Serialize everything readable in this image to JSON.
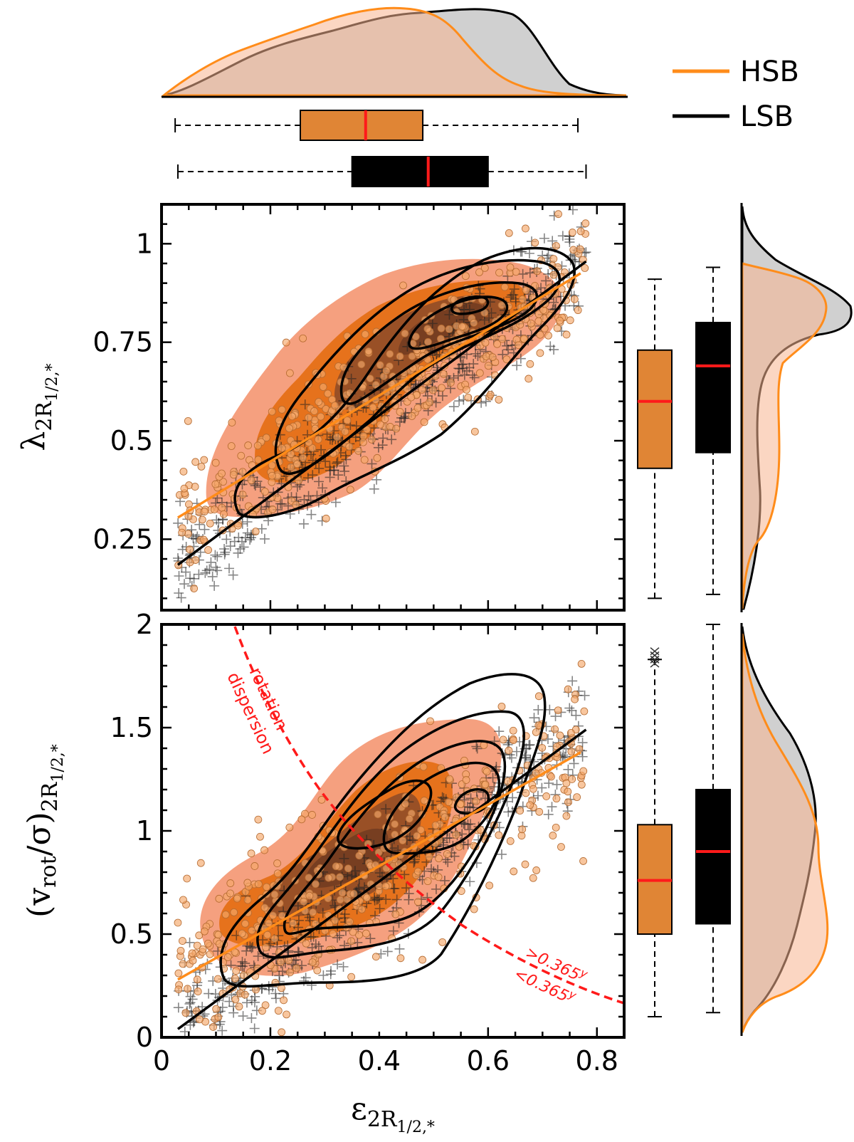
{
  "colors": {
    "hsb": "#ff8c1a",
    "hsb_box": "#e08535",
    "hsb_kde_light": "#f5a07f",
    "hsb_kde_mid": "#e6721c",
    "hsb_kde_dark": "#8b4a28",
    "lsb": "#000000",
    "lsb_fill": "#c8c8c8",
    "median": "#ff1a1a",
    "divider": "#ff1a1a"
  },
  "chart_data": [
    {
      "id": "top-scatter",
      "type": "scatter",
      "xlabel_main": "ε",
      "xlabel_sub": "2R",
      "ylabel_main": "λ",
      "ylabel_sub": "2R",
      "ylabel_subsub": "1/2,*",
      "xlim": [
        0,
        0.85
      ],
      "ylim": [
        0.07,
        1.1
      ],
      "yticks": [
        0.25,
        0.5,
        0.75,
        1.0
      ],
      "ytick_labels": [
        "0.25",
        "0.5",
        "0.75",
        "1"
      ],
      "series": [
        {
          "name": "HSB",
          "fit": [
            [
              0.03,
              0.305
            ],
            [
              0.77,
              0.925
            ]
          ]
        },
        {
          "name": "LSB",
          "fit": [
            [
              0.03,
              0.185
            ],
            [
              0.78,
              0.955
            ]
          ]
        }
      ]
    },
    {
      "id": "bottom-scatter",
      "type": "scatter",
      "xlabel_main": "ε",
      "xlabel_sub": "2R",
      "xlabel_subsub": "1/2,*",
      "ylabel_main": "(v",
      "ylabel_rot": "rot",
      "ylabel_mid": "/σ)",
      "ylabel_sub": "2R",
      "ylabel_subsub": "1/2,*",
      "xlim": [
        0,
        0.85
      ],
      "ylim": [
        0,
        2
      ],
      "xticks": [
        0,
        0.2,
        0.4,
        0.6,
        0.8
      ],
      "xtick_labels": [
        "0",
        "0.2",
        "0.4",
        "0.6",
        "0.8"
      ],
      "yticks": [
        0,
        0.5,
        1,
        1.5,
        2
      ],
      "ytick_labels": [
        "0",
        "0.5",
        "1",
        "1.5",
        "2"
      ],
      "series": [
        {
          "name": "HSB",
          "fit": [
            [
              0.03,
              0.28
            ],
            [
              0.77,
              1.38
            ]
          ]
        },
        {
          "name": "LSB",
          "fit": [
            [
              0.03,
              0.04
            ],
            [
              0.78,
              1.49
            ]
          ]
        }
      ],
      "annotations": {
        "rotation": "rotation",
        "dispersion": "dispersion",
        "above": ">0.365",
        "below": "<0.365",
        "above_sup": "y",
        "below_sup": "y"
      }
    },
    {
      "id": "box-top-x",
      "type": "box",
      "orientation": "horizontal",
      "series": [
        {
          "name": "HSB",
          "whislo": 0.025,
          "q1": 0.255,
          "med": 0.375,
          "q3": 0.48,
          "whishi": 0.765
        },
        {
          "name": "LSB",
          "whislo": 0.03,
          "q1": 0.35,
          "med": 0.49,
          "q3": 0.6,
          "whishi": 0.78
        }
      ]
    },
    {
      "id": "box-lambda",
      "type": "box",
      "orientation": "vertical",
      "series": [
        {
          "name": "HSB",
          "whislo": 0.1,
          "q1": 0.43,
          "med": 0.6,
          "q3": 0.73,
          "whishi": 0.91
        },
        {
          "name": "LSB",
          "whislo": 0.11,
          "q1": 0.47,
          "med": 0.69,
          "q3": 0.8,
          "whishi": 0.94
        }
      ]
    },
    {
      "id": "box-vsigma",
      "type": "box",
      "orientation": "vertical",
      "series": [
        {
          "name": "HSB",
          "whislo": 0.1,
          "q1": 0.5,
          "med": 0.76,
          "q3": 1.03,
          "whishi": 1.83
        },
        {
          "name": "LSB",
          "whislo": 0.12,
          "q1": 0.55,
          "med": 0.9,
          "q3": 1.2,
          "whishi": 2.0
        }
      ]
    }
  ],
  "legend": {
    "position": "top-right",
    "entries": [
      {
        "label": "HSB"
      },
      {
        "label": "LSB"
      }
    ]
  }
}
